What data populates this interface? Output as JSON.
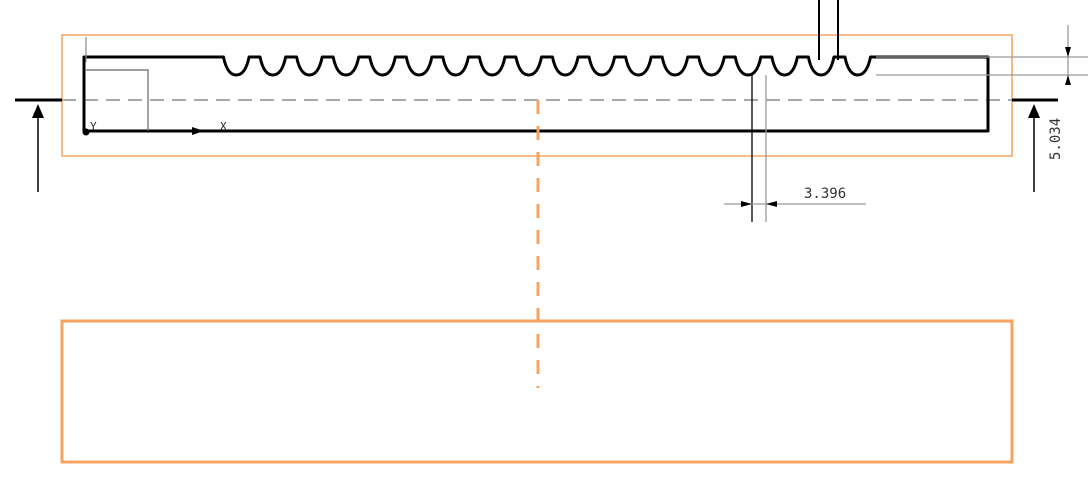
{
  "drawing": {
    "dimensions": {
      "pitch": {
        "value": "3.396",
        "unit": ""
      },
      "depth": {
        "value": "5.034",
        "unit": ""
      }
    },
    "axes": {
      "x_label": "X",
      "y_label": "Y"
    },
    "rack": {
      "tooth_count": 18
    },
    "colors": {
      "highlight": "#f4a460",
      "line": "#000000",
      "dim_line": "#9a9a9a",
      "centerline": "#a8a8a8"
    }
  }
}
